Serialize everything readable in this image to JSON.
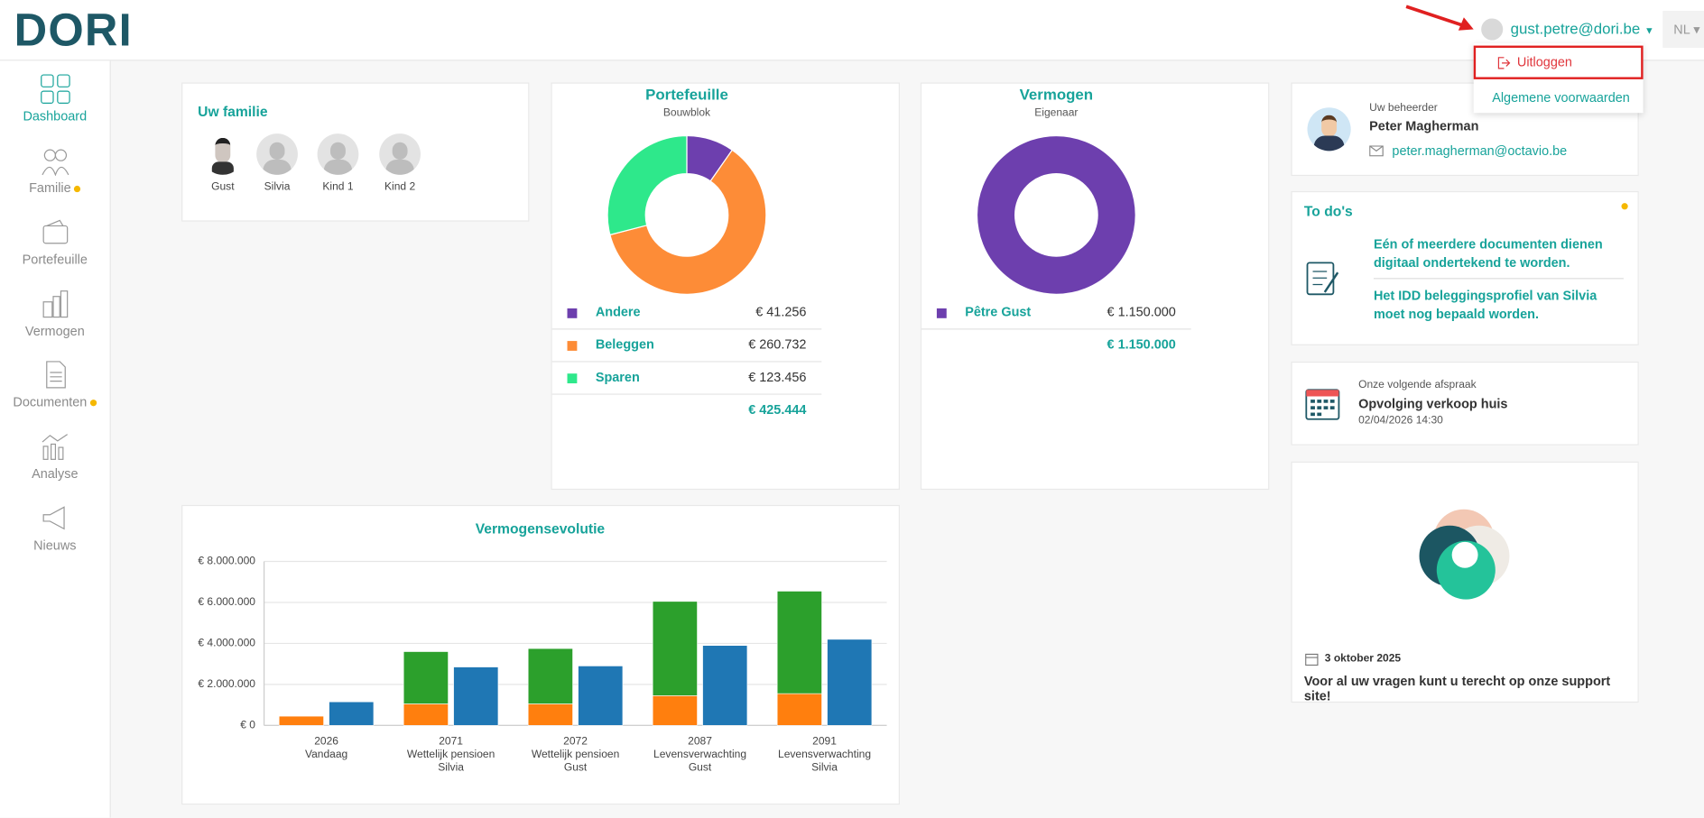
{
  "header": {
    "logo": "DORI",
    "user": "gust.petre@dori.be",
    "language": "NL",
    "menu": [
      "Uitloggen",
      "Algemene voorwaarden"
    ]
  },
  "sidebar": [
    "Dashboard",
    "Familie",
    "Portefeuille",
    "Vermogen",
    "Documenten",
    "Analyse",
    "Nieuws"
  ],
  "family": {
    "title": "Uw familie",
    "members": [
      "Gust",
      "Silvia",
      "Kind 1",
      "Kind 2"
    ]
  },
  "manager": {
    "label": "Uw beheerder",
    "name": "Peter Magherman",
    "email": "peter.magherman@octavio.be"
  },
  "todos": {
    "title": "To do's",
    "items": [
      "Eén of meerdere documenten dienen digitaal ondertekend te worden.",
      "Het IDD beleggingsprofiel van Silvia moet nog bepaald worden."
    ]
  },
  "appointment": {
    "label": "Onze volgende afspraak",
    "title": "Opvolging verkoop huis",
    "datetime": "02/04/2026 14:30"
  },
  "support": {
    "date": "3 oktober 2025",
    "text": "Voor al uw vragen kunt u terecht op onze support site!"
  },
  "chart_data": [
    {
      "type": "pie",
      "title": "Portefeuille",
      "subtitle": "Bouwblok",
      "categories": [
        "Andere",
        "Beleggen",
        "Sparen"
      ],
      "values": [
        41256,
        260732,
        123456
      ],
      "value_labels": [
        "€ 41.256",
        "€ 260.732",
        "€ 123.456"
      ],
      "colors": [
        "#6d3fae",
        "#fd8c37",
        "#2ee88b"
      ],
      "total": "€ 425.444"
    },
    {
      "type": "pie",
      "title": "Vermogen",
      "subtitle": "Eigenaar",
      "categories": [
        "Pêtre Gust"
      ],
      "values": [
        1150000
      ],
      "value_labels": [
        "€ 1.150.000"
      ],
      "colors": [
        "#6d3fae"
      ],
      "total": "€ 1.150.000"
    },
    {
      "type": "bar",
      "title": "Vermogensevolutie",
      "categories": [
        [
          "2026",
          "Vandaag"
        ],
        [
          "2071",
          "Wettelijk pensioen",
          "Silvia"
        ],
        [
          "2072",
          "Wettelijk pensioen",
          "Gust"
        ],
        [
          "2087",
          "Levensverwachting",
          "Gust"
        ],
        [
          "2091",
          "Levensverwachting",
          "Silvia"
        ]
      ],
      "series": [
        {
          "color": "#ff7f0e",
          "group": 0,
          "values": [
            450000,
            1050000,
            1050000,
            1450000,
            1550000
          ]
        },
        {
          "color": "#2ca02c",
          "group": 0,
          "values": [
            0,
            2550000,
            2700000,
            4600000,
            5000000
          ]
        },
        {
          "color": "#1f77b4",
          "group": 1,
          "values": [
            1150000,
            2850000,
            2900000,
            3900000,
            4200000
          ]
        }
      ],
      "ylim": [
        0,
        8000000
      ],
      "yticks": [
        {
          "value": 0,
          "label": "€ 0"
        },
        {
          "value": 2000000,
          "label": "€ 2.000.000"
        },
        {
          "value": 4000000,
          "label": "€ 4.000.000"
        },
        {
          "value": 6000000,
          "label": "€ 6.000.000"
        },
        {
          "value": 8000000,
          "label": "€ 8.000.000"
        }
      ],
      "grid": true
    }
  ]
}
